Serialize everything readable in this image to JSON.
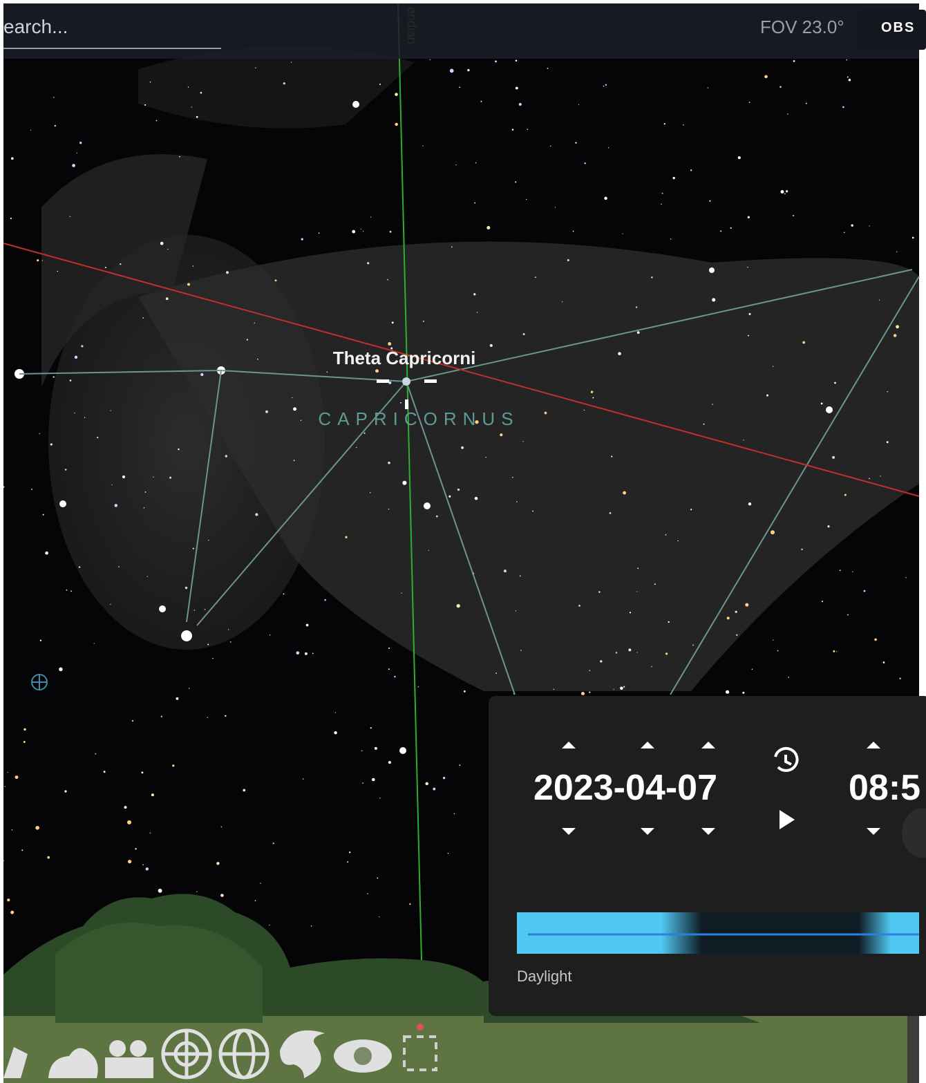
{
  "search": {
    "placeholder": "earch..."
  },
  "meridian_label": "eridian",
  "fov": "FOV 23.0°",
  "observe_button": "OBS",
  "selected_object": "Theta Capricorni",
  "constellation": "CAPRICORNUS",
  "time_panel": {
    "date": "2023-04-07",
    "time": "08:5",
    "daylight_label": "Daylight"
  }
}
